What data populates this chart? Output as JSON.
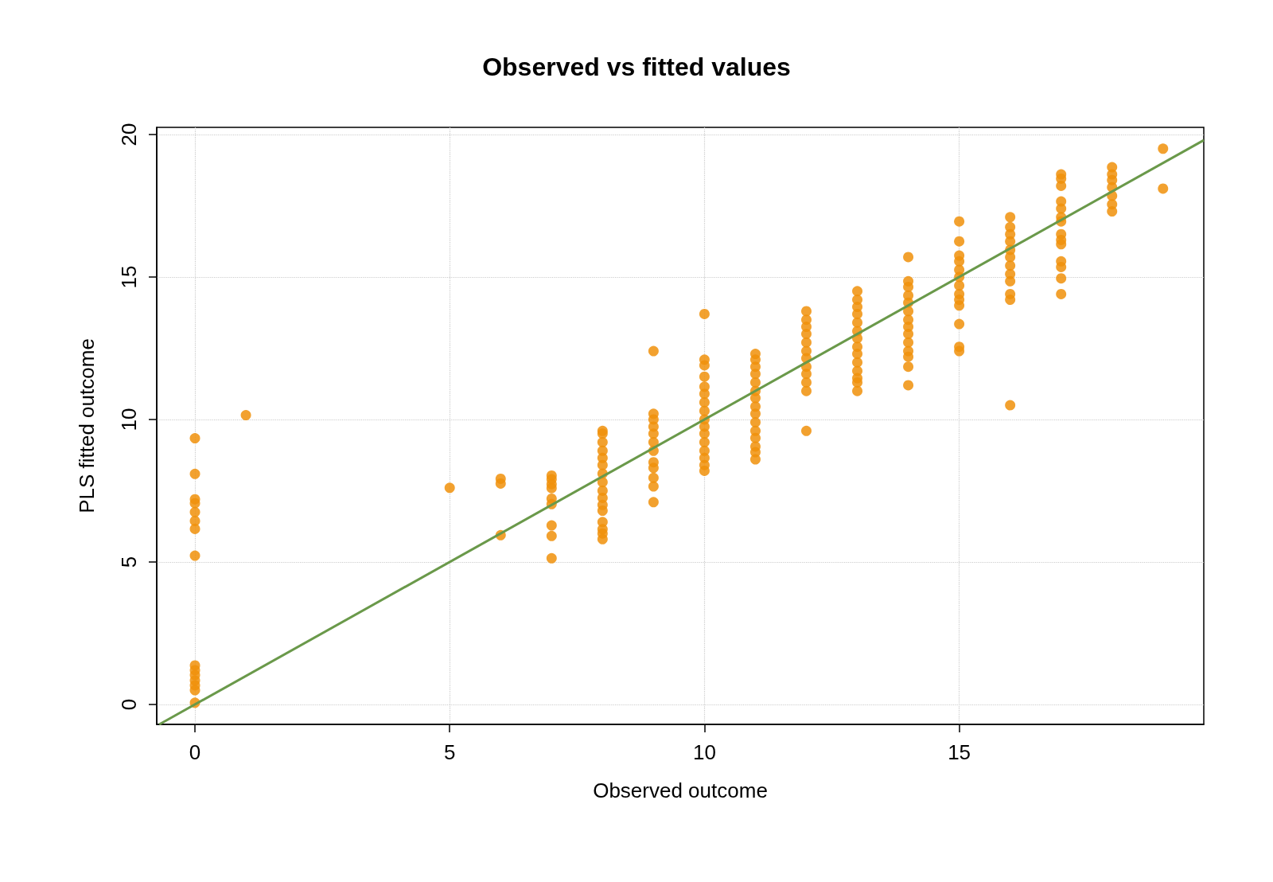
{
  "chart_data": {
    "type": "scatter",
    "title": "Observed vs fitted values",
    "xlabel": "Observed outcome",
    "ylabel": "PLS fitted outcome",
    "xlim": [
      -0.75,
      19.8
    ],
    "ylim": [
      -0.7,
      20.25
    ],
    "xticks": [
      0,
      5,
      10,
      15
    ],
    "yticks": [
      0,
      5,
      10,
      15,
      20
    ],
    "grid": true,
    "series": [
      {
        "color": "#f0900a",
        "marker": "circle",
        "x": [
          0,
          0,
          0,
          0,
          0,
          0,
          0,
          0,
          0,
          0,
          0,
          0,
          0,
          0,
          0,
          1,
          5,
          6,
          6,
          6,
          7,
          7,
          7,
          7,
          7,
          7,
          7,
          7,
          7,
          8,
          8,
          8,
          8,
          8,
          8,
          8,
          8,
          8,
          8,
          8,
          8,
          8,
          8,
          8,
          8,
          9,
          9,
          9,
          9,
          9,
          9,
          9,
          9,
          9,
          9,
          9,
          9,
          10,
          10,
          10,
          10,
          10,
          10,
          10,
          10,
          10,
          10,
          10,
          10,
          10,
          10,
          10,
          10,
          11,
          11,
          11,
          11,
          11,
          11,
          11,
          11,
          11,
          11,
          11,
          11,
          11,
          11,
          11,
          12,
          12,
          12,
          12,
          12,
          12,
          12,
          12,
          12,
          12,
          12,
          12,
          13,
          13,
          13,
          13,
          13,
          13,
          13,
          13,
          13,
          13,
          13,
          13,
          13,
          13,
          14,
          14,
          14,
          14,
          14,
          14,
          14,
          14,
          14,
          14,
          14,
          14,
          14,
          14,
          15,
          15,
          15,
          15,
          15,
          15,
          15,
          15,
          15,
          15,
          15,
          15,
          15,
          16,
          16,
          16,
          16,
          16,
          16,
          16,
          16,
          16,
          16,
          16,
          16,
          17,
          17,
          17,
          17,
          17,
          17,
          17,
          17,
          17,
          17,
          17,
          17,
          17,
          17,
          18,
          18,
          18,
          18,
          18,
          18,
          18,
          19,
          19
        ],
        "values": [
          9.34,
          8.09,
          7.2,
          7.06,
          6.75,
          6.44,
          6.16,
          5.22,
          1.37,
          1.2,
          1.03,
          0.84,
          0.67,
          0.5,
          0.06,
          10.15,
          7.6,
          7.92,
          7.75,
          5.94,
          8.03,
          7.9,
          7.73,
          7.59,
          7.22,
          7.03,
          6.28,
          5.91,
          5.13,
          9.6,
          9.5,
          9.2,
          8.9,
          8.65,
          8.4,
          8.1,
          7.8,
          7.5,
          7.25,
          7.0,
          6.8,
          6.4,
          6.15,
          6.0,
          5.8,
          12.4,
          10.2,
          10.0,
          9.75,
          9.5,
          9.2,
          8.9,
          8.5,
          8.3,
          7.95,
          7.65,
          7.1,
          13.7,
          12.1,
          11.9,
          11.5,
          11.15,
          10.9,
          10.6,
          10.3,
          10.0,
          9.75,
          9.5,
          9.2,
          8.9,
          8.65,
          8.4,
          8.2,
          12.3,
          12.1,
          11.85,
          11.6,
          11.3,
          11.0,
          10.75,
          10.45,
          10.2,
          9.9,
          9.6,
          9.35,
          9.05,
          8.85,
          8.6,
          13.8,
          13.5,
          13.25,
          13.0,
          12.7,
          12.4,
          12.15,
          11.85,
          11.6,
          11.3,
          11.0,
          9.6,
          14.5,
          14.2,
          13.95,
          13.7,
          13.4,
          13.1,
          12.85,
          12.55,
          12.3,
          12.0,
          11.7,
          11.45,
          11.3,
          11.0,
          15.7,
          14.85,
          14.65,
          14.35,
          14.1,
          13.8,
          13.5,
          13.25,
          13.0,
          12.7,
          12.4,
          12.2,
          11.85,
          11.2,
          16.95,
          16.25,
          15.75,
          15.55,
          15.25,
          15.0,
          14.7,
          14.4,
          14.2,
          14.0,
          13.35,
          12.55,
          12.4,
          17.1,
          16.75,
          16.5,
          16.25,
          15.95,
          15.7,
          15.4,
          15.1,
          14.85,
          14.4,
          14.2,
          10.5,
          18.6,
          18.45,
          18.2,
          17.65,
          17.4,
          17.1,
          16.95,
          16.5,
          16.3,
          16.15,
          15.55,
          15.35,
          14.95,
          14.4,
          18.85,
          18.6,
          18.4,
          18.15,
          17.85,
          17.55,
          17.3,
          19.5,
          18.1
        ]
      },
      {
        "type": "line",
        "color": "#6a994a",
        "marker": "none",
        "x": [
          -0.7,
          19.8
        ],
        "values": [
          -0.7,
          19.8
        ]
      }
    ]
  }
}
